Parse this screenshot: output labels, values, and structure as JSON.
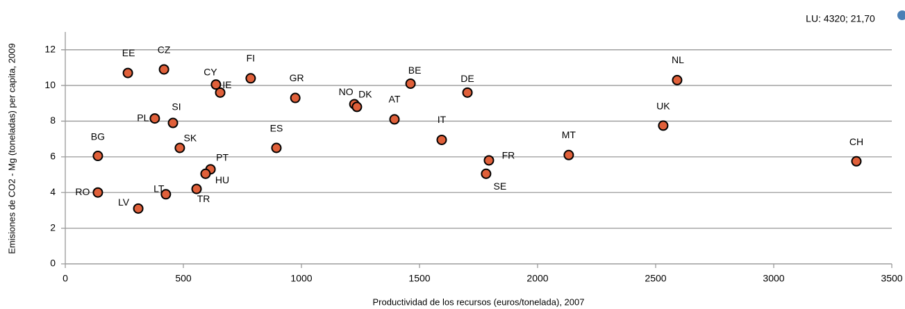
{
  "chart_data": {
    "type": "scatter",
    "annotation": "LU: 4320; 21,70",
    "x_label": "Productividad de los recursos (euros/tonelada), 2007",
    "y_label": "Emisiones de CO2 - Mg (toneladas) per capita, 2009",
    "point_labels": [
      "EE",
      "CZ",
      "CY",
      "IE",
      "FI",
      "GR",
      "NO",
      "DK",
      "AT",
      "BE",
      "DE",
      "IT",
      "FR",
      "SE",
      "MT",
      "UK",
      "NL",
      "CH",
      "BG",
      "RO",
      "LV",
      "LT",
      "PL",
      "SI",
      "SK",
      "PT",
      "HU",
      "TR",
      "ES"
    ],
    "x": [
      265,
      418,
      638,
      656,
      785,
      974,
      1224,
      1235,
      1394,
      1462,
      1703,
      1594,
      1794,
      1782,
      2132,
      2532,
      2591,
      3350,
      138,
      138,
      309,
      426,
      379,
      456,
      485,
      615,
      594,
      556,
      894
    ],
    "series": [
      {
        "color": "#e0603a",
        "values": [
          10.7,
          10.9,
          10.05,
          9.6,
          10.4,
          9.3,
          8.95,
          8.8,
          8.1,
          10.1,
          9.6,
          6.95,
          5.8,
          5.05,
          6.1,
          7.75,
          10.3,
          5.75,
          6.05,
          4.0,
          3.1,
          3.9,
          8.15,
          7.9,
          6.5,
          5.3,
          5.05,
          4.2,
          6.5
        ]
      }
    ],
    "xlim": [
      0,
      3500
    ],
    "xticks": [
      0,
      500,
      1000,
      1500,
      2000,
      2500,
      3000,
      3500
    ],
    "ylim": [
      0,
      13
    ],
    "yticks": [
      0,
      2,
      4,
      6,
      8,
      10,
      12
    ],
    "grid": true
  }
}
